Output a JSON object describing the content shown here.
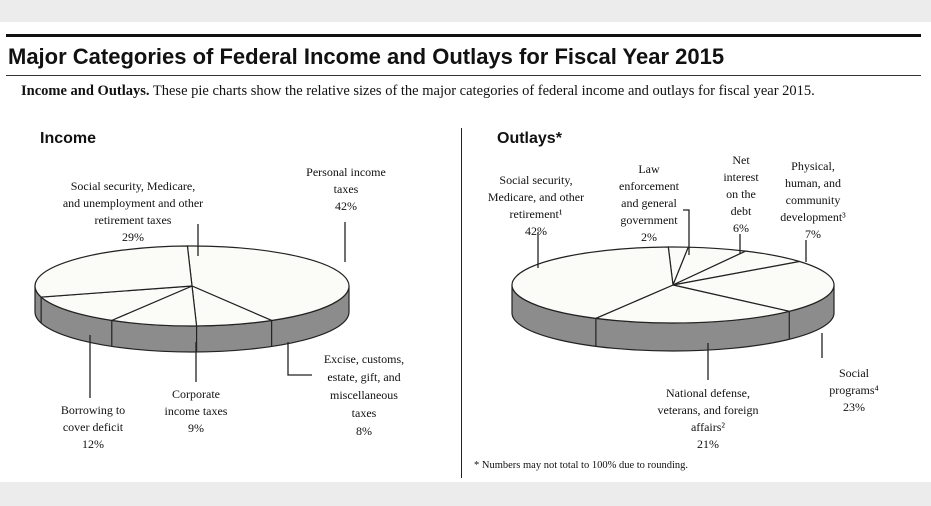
{
  "title": "Major Categories of Federal Income and Outlays for Fiscal Year 2015",
  "caption": {
    "lead": "Income and Outlays.",
    "text": " These pie charts show the relative sizes of the major categories of federal income and outlays for fiscal year 2015."
  },
  "footnote": "* Numbers may not total to 100% due to rounding.",
  "colors": {
    "top": "#fbfbf7",
    "side": "#8c8c8c",
    "stroke": "#222222"
  },
  "chart_data": [
    {
      "type": "pie",
      "title": "Income",
      "slices": [
        {
          "label": "Personal income taxes",
          "value": 42,
          "value_label": "42%"
        },
        {
          "label": "Excise, customs, estate, gift, and miscellaneous taxes",
          "value": 8,
          "value_label": "8%"
        },
        {
          "label": "Corporate income taxes",
          "value": 9,
          "value_label": "9%"
        },
        {
          "label": "Borrowing to cover deficit",
          "value": 12,
          "value_label": "12%"
        },
        {
          "label": "Social security, Medicare, and unemployment and other retirement taxes",
          "value": 29,
          "value_label": "29%"
        }
      ]
    },
    {
      "type": "pie",
      "title": "Outlays*",
      "slices": [
        {
          "label": "Law enforcement and general government",
          "value": 2,
          "value_label": "2%"
        },
        {
          "label": "Net interest on the debt",
          "value": 6,
          "value_label": "6%"
        },
        {
          "label": "Physical, human, and community development³",
          "value": 7,
          "value_label": "7%"
        },
        {
          "label": "Social programs⁴",
          "value": 23,
          "value_label": "23%"
        },
        {
          "label": "National defense, veterans, and foreign affairs²",
          "value": 21,
          "value_label": "21%"
        },
        {
          "label": "Social security, Medicare, and other retirement¹",
          "value": 42,
          "value_label": "42%"
        }
      ]
    }
  ],
  "income_labels": {
    "personal": [
      "Personal income",
      "taxes",
      "42%"
    ],
    "ss": [
      "Social security, Medicare,",
      "and unemployment and other",
      "retirement taxes",
      "29%"
    ],
    "excise": [
      "Excise, customs,",
      "estate, gift, and",
      "miscellaneous",
      "taxes",
      "8%"
    ],
    "corporate": [
      "Corporate",
      "income taxes",
      "9%"
    ],
    "borrowing": [
      "Borrowing to",
      "cover deficit",
      "12%"
    ]
  },
  "outlay_labels": {
    "ss": [
      "Social security,",
      "Medicare, and other",
      "retirement¹",
      "42%"
    ],
    "law": [
      "Law",
      "enforcement",
      "and general",
      "government",
      "2%"
    ],
    "interest": [
      "Net",
      "interest",
      "on the",
      "debt",
      "6%"
    ],
    "physical": [
      "Physical,",
      "human, and",
      "community",
      "development³",
      "7%"
    ],
    "social": [
      "Social",
      "programs⁴",
      "23%"
    ],
    "defense": [
      "National defense,",
      "veterans, and foreign",
      "affairs²",
      "21%"
    ]
  }
}
